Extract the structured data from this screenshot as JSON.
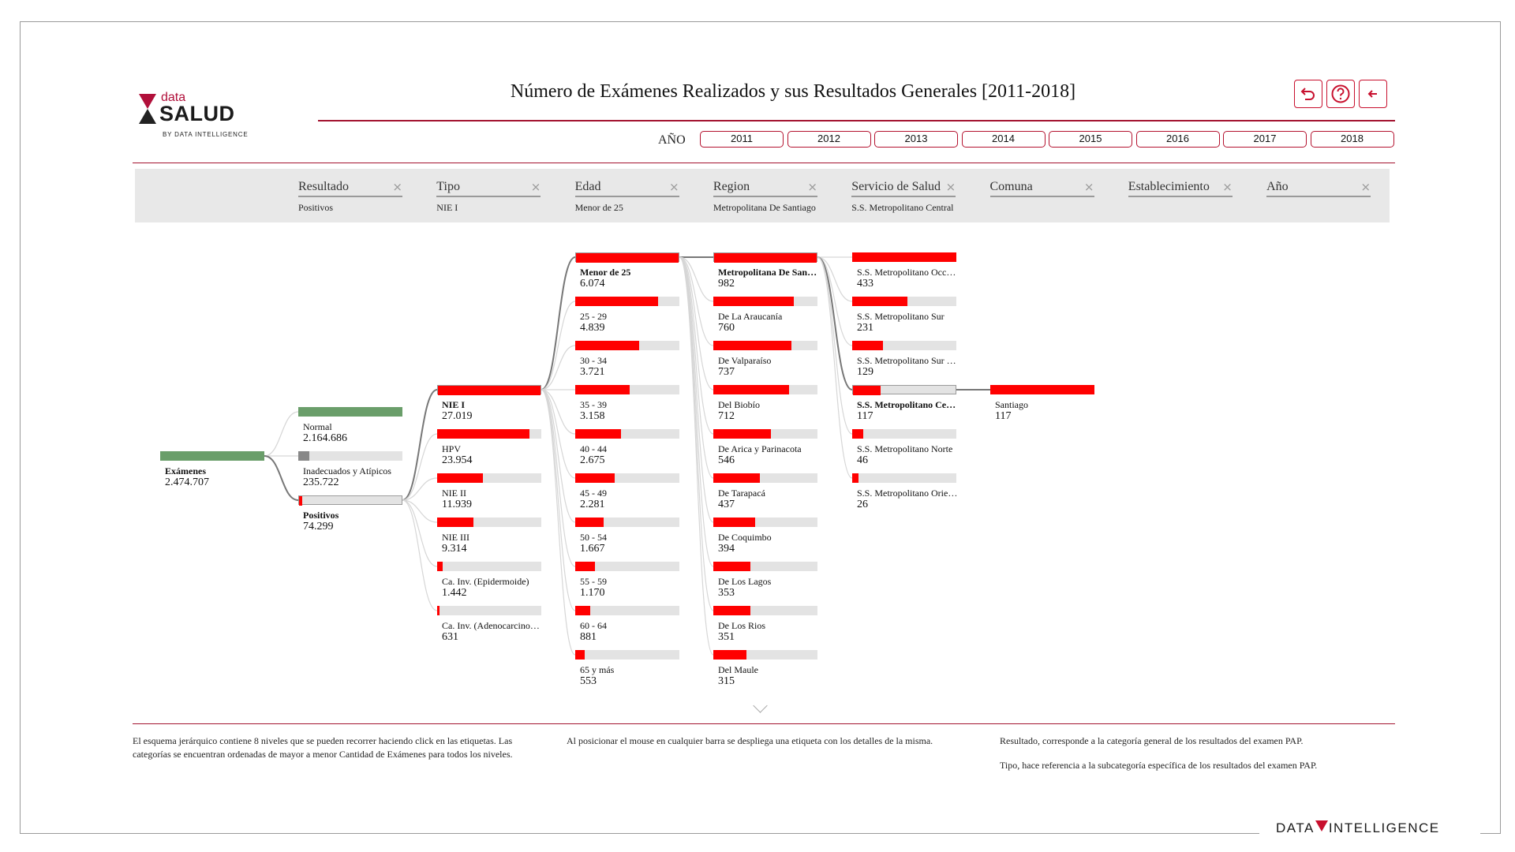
{
  "logo": {
    "data": "data",
    "salud": "SALUD",
    "by": "BY DATA INTELLIGENCE"
  },
  "title": "Número de Exámenes Realizados y sus Resultados Generales [2011-2018]",
  "toolbar": {
    "undo_icon": "undo-icon",
    "help_icon": "help-icon",
    "back_icon": "back-arrow-icon"
  },
  "year_label": "AÑO",
  "years": [
    "2011",
    "2012",
    "2013",
    "2014",
    "2015",
    "2016",
    "2017",
    "2018"
  ],
  "filters": [
    {
      "name": "Resultado",
      "value": "Positivos"
    },
    {
      "name": "Tipo",
      "value": "NIE I"
    },
    {
      "name": "Edad",
      "value": "Menor de 25"
    },
    {
      "name": "Region",
      "value": "Metropolitana De Santiago"
    },
    {
      "name": "Servicio de Salud",
      "value": "S.S. Metropolitano Central"
    },
    {
      "name": "Comuna",
      "value": ""
    },
    {
      "name": "Establecimiento",
      "value": ""
    },
    {
      "name": "Año",
      "value": ""
    }
  ],
  "colors": {
    "accent": "#a3132f",
    "bar_red": "#ff0000",
    "bar_green": "#6a9e6a",
    "bar_gray": "#888888",
    "track": "#e3e3e3"
  },
  "tree": {
    "root": {
      "label": "Exámenes",
      "value": "2.474.707"
    },
    "resultado": [
      {
        "label": "Normal",
        "value": "2.164.686",
        "fraction": 1.0,
        "color": "green"
      },
      {
        "label": "Inadecuados y Atípicos",
        "value": "235.722",
        "fraction": 0.109,
        "color": "gray"
      },
      {
        "label": "Positivos",
        "value": "74.299",
        "fraction": 0.034,
        "color": "red",
        "selected": true
      }
    ],
    "tipo": [
      {
        "label": "NIE I",
        "value": "27.019",
        "fraction": 1.0,
        "selected": true
      },
      {
        "label": "HPV",
        "value": "23.954",
        "fraction": 0.887
      },
      {
        "label": "NIE II",
        "value": "11.939",
        "fraction": 0.442
      },
      {
        "label": "NIE III",
        "value": "9.314",
        "fraction": 0.345
      },
      {
        "label": "Ca. Inv. (Epidermoide)",
        "value": "1.442",
        "fraction": 0.053
      },
      {
        "label": "Ca. Inv. (Adenocarcinoma)",
        "value": "631",
        "fraction": 0.023
      }
    ],
    "edad": [
      {
        "label": "Menor de 25",
        "value": "6.074",
        "fraction": 1.0,
        "selected": true
      },
      {
        "label": "25 - 29",
        "value": "4.839",
        "fraction": 0.797
      },
      {
        "label": "30 - 34",
        "value": "3.721",
        "fraction": 0.613
      },
      {
        "label": "35 - 39",
        "value": "3.158",
        "fraction": 0.52
      },
      {
        "label": "40 - 44",
        "value": "2.675",
        "fraction": 0.44
      },
      {
        "label": "45 - 49",
        "value": "2.281",
        "fraction": 0.376
      },
      {
        "label": "50 - 54",
        "value": "1.667",
        "fraction": 0.274
      },
      {
        "label": "55 - 59",
        "value": "1.170",
        "fraction": 0.193
      },
      {
        "label": "60 - 64",
        "value": "881",
        "fraction": 0.145
      },
      {
        "label": "65 y más",
        "value": "553",
        "fraction": 0.091
      }
    ],
    "region": [
      {
        "label": "Metropolitana De Santiago",
        "value": "982",
        "fraction": 1.0,
        "selected": true
      },
      {
        "label": "De La Araucanía",
        "value": "760",
        "fraction": 0.774
      },
      {
        "label": "De Valparaíso",
        "value": "737",
        "fraction": 0.751
      },
      {
        "label": "Del Biobío",
        "value": "712",
        "fraction": 0.725
      },
      {
        "label": "De Arica y Parinacota",
        "value": "546",
        "fraction": 0.556
      },
      {
        "label": "De Tarapacá",
        "value": "437",
        "fraction": 0.445
      },
      {
        "label": "De Coquimbo",
        "value": "394",
        "fraction": 0.401
      },
      {
        "label": "De Los Lagos",
        "value": "353",
        "fraction": 0.359
      },
      {
        "label": "De Los Rios",
        "value": "351",
        "fraction": 0.357
      },
      {
        "label": "Del Maule",
        "value": "315",
        "fraction": 0.321
      }
    ],
    "servicio": [
      {
        "label": "S.S. Metropolitano Occidente",
        "value": "433",
        "fraction": 1.0
      },
      {
        "label": "S.S. Metropolitano Sur",
        "value": "231",
        "fraction": 0.533
      },
      {
        "label": "S.S. Metropolitano Sur Oriente",
        "value": "129",
        "fraction": 0.298
      },
      {
        "label": "S.S. Metropolitano Central",
        "value": "117",
        "fraction": 0.27,
        "selected": true
      },
      {
        "label": "S.S. Metropolitano Norte",
        "value": "46",
        "fraction": 0.106
      },
      {
        "label": "S.S. Metropolitano Oriente",
        "value": "26",
        "fraction": 0.06
      }
    ],
    "comuna": [
      {
        "label": "Santiago",
        "value": "117",
        "fraction": 1.0
      }
    ]
  },
  "notes": [
    "El esquema jerárquico contiene 8 niveles que se pueden recorrer haciendo click en las etiquetas. Las categorías se encuentran ordenadas de mayor a menor Cantidad de Exámenes para todos los niveles.",
    "Al posicionar el mouse en cualquier barra se despliega una etiqueta con los detalles de la misma.",
    "Resultado, corresponde a la categoría general de los resultados del examen PAP.",
    "Tipo, hace referencia a la subcategoría específica de los resultados del examen PAP."
  ],
  "footer_logo": {
    "left": "DATA",
    "right": "INTELLIGENCE"
  }
}
